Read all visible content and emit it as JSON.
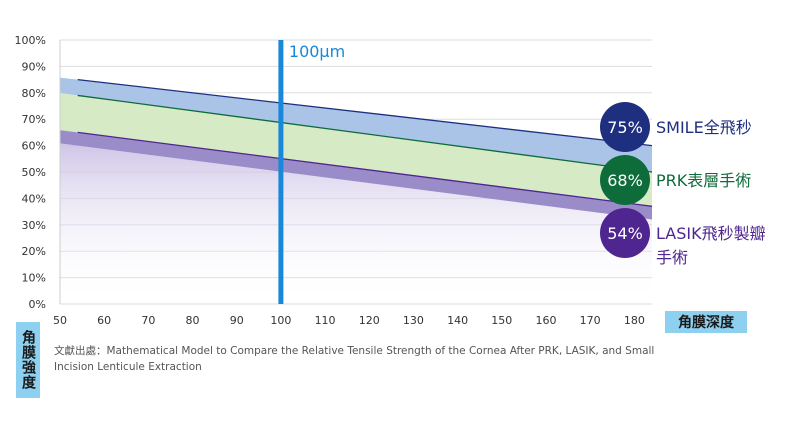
{
  "chart_data": {
    "type": "area",
    "x_ticks": [
      "50",
      "60",
      "70",
      "80",
      "90",
      "100",
      "110",
      "120",
      "130",
      "140",
      "150",
      "160",
      "170",
      "180"
    ],
    "y_ticks": [
      "0%",
      "10%",
      "20%",
      "30%",
      "40%",
      "50%",
      "60%",
      "70%",
      "80%",
      "90%",
      "100%"
    ],
    "xlim": [
      50,
      184
    ],
    "ylim": [
      0,
      100
    ],
    "xlabel": "角膜深度",
    "ylabel": "角膜強度",
    "reference_line": {
      "x": 100,
      "label": "100μm",
      "color": "#1a88d8"
    },
    "series": [
      {
        "name": "SMILE全飛秒",
        "percent_label": "75%",
        "color": "#1f2f7f",
        "band_color": "#a9c4e6",
        "x": [
          54,
          184
        ],
        "y": [
          85,
          60
        ]
      },
      {
        "name": "PRK表層手術",
        "percent_label": "68%",
        "color": "#0e6b3a",
        "band_color": "#d6ebc5",
        "x": [
          54,
          184
        ],
        "y": [
          79,
          50
        ]
      },
      {
        "name": "LASIK飛秒製瓣手術",
        "label_lines": [
          "LASIK飛秒製瓣",
          "手術"
        ],
        "percent_label": "54%",
        "color": "#4f2590",
        "band_color": "#9a8cc8",
        "x": [
          54,
          184
        ],
        "y": [
          65,
          37
        ]
      }
    ]
  },
  "source_text": "文獻出處：Mathematical Model to Compare the Relative Tensile Strength of the Cornea After PRK, LASIK, and Small Incision Lenticule Extraction",
  "colors": {
    "grid": "#dddddd",
    "axis": "#999999"
  }
}
